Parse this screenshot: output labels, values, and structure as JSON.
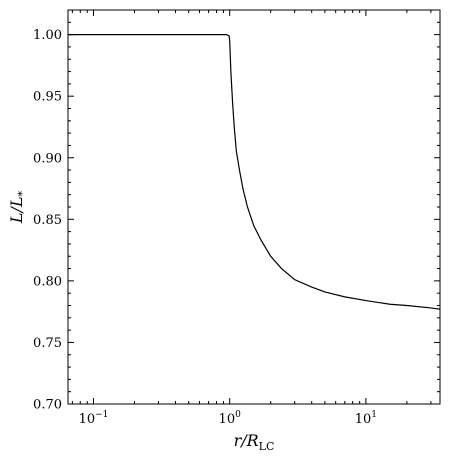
{
  "chart_data": {
    "type": "line",
    "xscale": "log",
    "xlim": [
      0.065,
      35
    ],
    "ylim": [
      0.7,
      1.02
    ],
    "grid": false,
    "legend": "none",
    "xlabel": {
      "main": "r/R",
      "sub": "LC"
    },
    "ylabel": {
      "main": "L/L",
      "sub": "*"
    },
    "xticks": [
      {
        "value": 0.1,
        "base": "10",
        "exp": "−1"
      },
      {
        "value": 1,
        "base": "10",
        "exp": "0"
      },
      {
        "value": 10,
        "base": "10",
        "exp": "1"
      }
    ],
    "yticks": [
      {
        "value": 0.7,
        "label": "0.70"
      },
      {
        "value": 0.75,
        "label": "0.75"
      },
      {
        "value": 0.8,
        "label": "0.80"
      },
      {
        "value": 0.85,
        "label": "0.85"
      },
      {
        "value": 0.9,
        "label": "0.90"
      },
      {
        "value": 0.95,
        "label": "0.95"
      },
      {
        "value": 1.0,
        "label": "1.00"
      }
    ],
    "series": [
      {
        "color": "#000000",
        "x": [
          0.065,
          0.1,
          0.2,
          0.5,
          0.8,
          0.95,
          0.99,
          1.0,
          1.02,
          1.05,
          1.08,
          1.12,
          1.18,
          1.25,
          1.35,
          1.5,
          1.7,
          2.0,
          2.4,
          3.0,
          4.0,
          5.0,
          7.0,
          10.0,
          15.0,
          20.0,
          30.0,
          35.0
        ],
        "y": [
          1.0,
          1.0,
          1.0,
          1.0,
          1.0,
          1.0,
          0.999,
          0.995,
          0.97,
          0.945,
          0.925,
          0.905,
          0.89,
          0.875,
          0.86,
          0.845,
          0.833,
          0.82,
          0.81,
          0.801,
          0.795,
          0.791,
          0.787,
          0.784,
          0.781,
          0.78,
          0.778,
          0.777
        ]
      }
    ]
  }
}
